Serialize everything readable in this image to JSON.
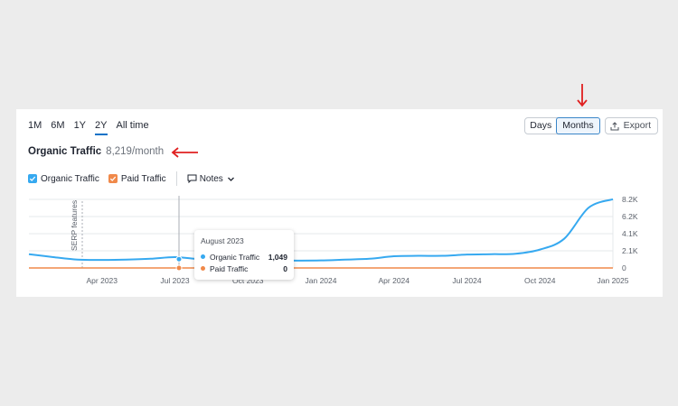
{
  "ranges": [
    "1M",
    "6M",
    "1Y",
    "2Y",
    "All time"
  ],
  "active_range": "2Y",
  "granularity": {
    "days_label": "Days",
    "months_label": "Months",
    "active": "Months"
  },
  "export_label": "Export",
  "title": "Organic Traffic",
  "metric_value": "8,219/month",
  "legend": {
    "organic": {
      "label": "Organic Traffic",
      "color": "#36a9f0"
    },
    "paid": {
      "label": "Paid Traffic",
      "color": "#f0894a"
    },
    "notes": "Notes"
  },
  "annotation_label": "SERP features",
  "tooltip": {
    "date": "August 2023",
    "rows": [
      {
        "name": "Organic Traffic",
        "value": "1,049"
      },
      {
        "name": "Paid Traffic",
        "value": "0"
      }
    ]
  },
  "chart_data": {
    "type": "line",
    "x_labels": [
      "Apr 2023",
      "Jul 2023",
      "Oct 2023",
      "Jan 2024",
      "Apr 2024",
      "Jul 2024",
      "Oct 2024",
      "Jan 2025"
    ],
    "y_ticks": [
      "8.2K",
      "6.2K",
      "4.1K",
      "2.1K",
      "0"
    ],
    "ylim": [
      0,
      8200
    ],
    "series": [
      {
        "name": "Organic Traffic",
        "color": "#36a9f0",
        "x": [
          "Jan 2023",
          "Feb 2023",
          "Mar 2023",
          "Apr 2023",
          "May 2023",
          "Jun 2023",
          "Jul 2023",
          "Aug 2023",
          "Sep 2023",
          "Oct 2023",
          "Nov 2023",
          "Dec 2023",
          "Jan 2024",
          "Feb 2024",
          "Mar 2024",
          "Apr 2024",
          "May 2024",
          "Jun 2024",
          "Jul 2024",
          "Aug 2024",
          "Sep 2024",
          "Oct 2024",
          "Nov 2024",
          "Dec 2024",
          "Jan 2025"
        ],
        "values": [
          1650,
          1300,
          1000,
          960,
          1000,
          1100,
          1300,
          1049,
          900,
          900,
          920,
          880,
          900,
          1000,
          1100,
          1400,
          1450,
          1450,
          1600,
          1650,
          1700,
          2200,
          3500,
          7200,
          8219
        ]
      },
      {
        "name": "Paid Traffic",
        "color": "#f0894a",
        "values": [
          0,
          0,
          0,
          0,
          0,
          0,
          0,
          0,
          0,
          0,
          0,
          0,
          0,
          0,
          0,
          0,
          0,
          0,
          0,
          0,
          0,
          0,
          0,
          0,
          0
        ]
      }
    ],
    "grid": true,
    "annotations": [
      {
        "x": "Apr 2023",
        "label": "SERP features"
      }
    ],
    "hover": "Aug 2023"
  }
}
